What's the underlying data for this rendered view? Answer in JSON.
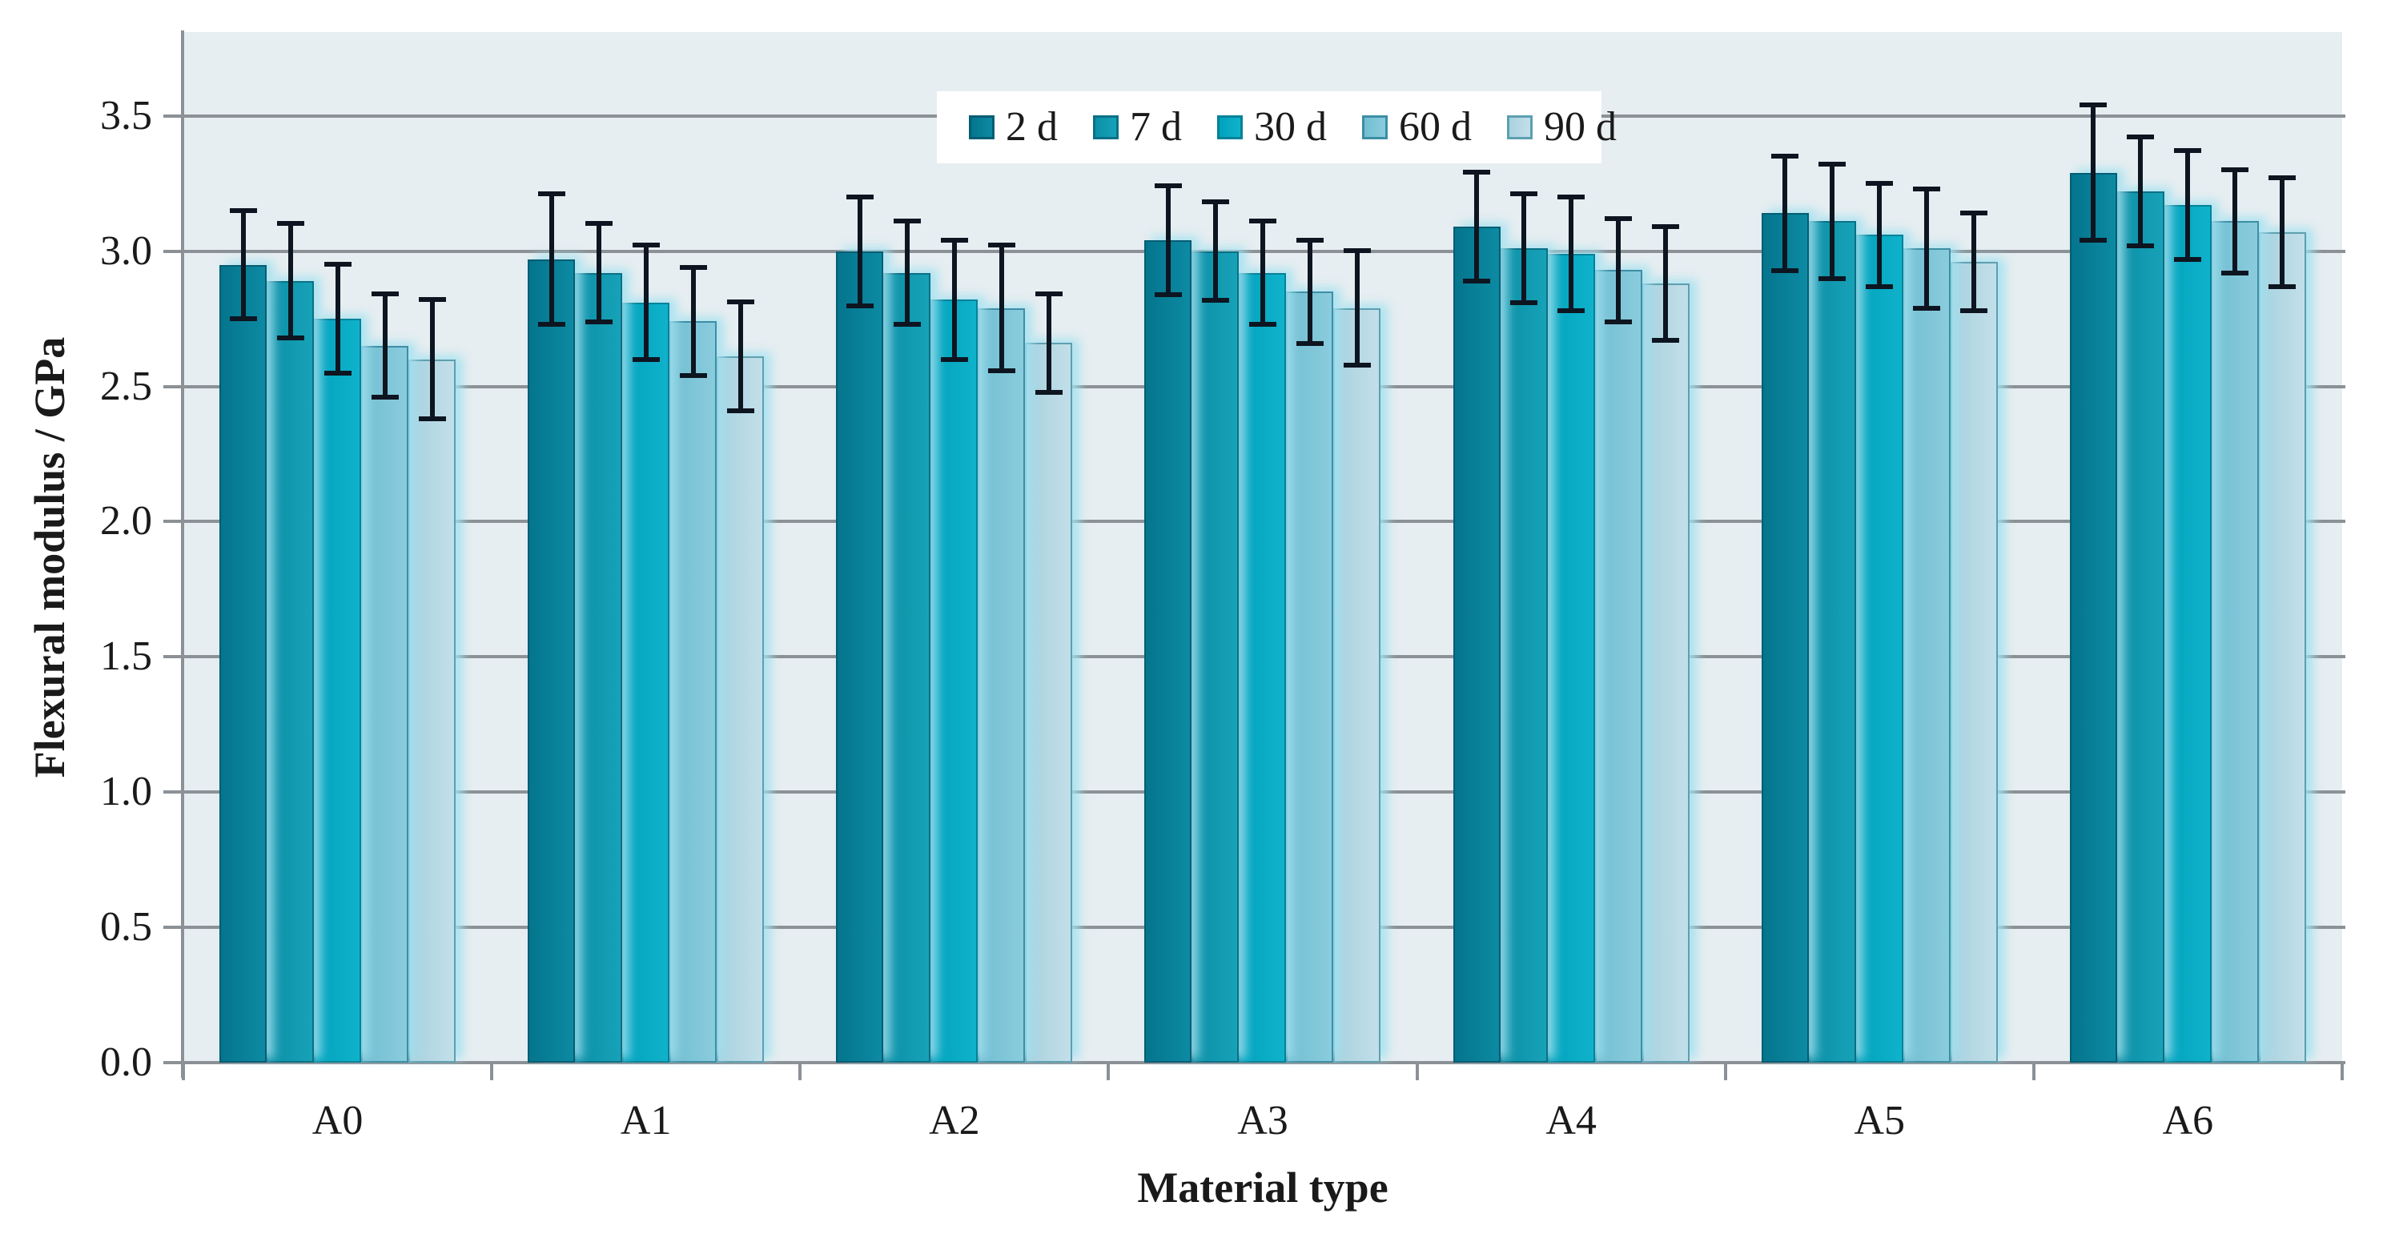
{
  "chart_data": {
    "type": "bar",
    "title": "",
    "xlabel": "Material type",
    "ylabel": "Flexural modulus / GPa",
    "categories": [
      "A0",
      "A1",
      "A2",
      "A3",
      "A4",
      "A5",
      "A6"
    ],
    "series": [
      {
        "name": "2 d",
        "fill": "#04758d",
        "fill2": "#0d8aa3",
        "border": "#045d73",
        "values": [
          2.95,
          2.97,
          3.0,
          3.04,
          3.09,
          3.14,
          3.29
        ],
        "errors": [
          0.21,
          0.25,
          0.21,
          0.21,
          0.21,
          0.22,
          0.26
        ]
      },
      {
        "name": "7 d",
        "fill": "#0b8fa6",
        "fill2": "#17a2b8",
        "border": "#0a7085",
        "values": [
          2.89,
          2.92,
          2.92,
          3.0,
          3.01,
          3.11,
          3.22
        ],
        "errors": [
          0.22,
          0.19,
          0.2,
          0.19,
          0.21,
          0.22,
          0.21
        ]
      },
      {
        "name": "30 d",
        "fill": "#00a2bd",
        "fill2": "#10b2cb",
        "border": "#028299",
        "values": [
          2.75,
          2.81,
          2.82,
          2.92,
          2.99,
          3.06,
          3.17
        ],
        "errors": [
          0.21,
          0.22,
          0.23,
          0.2,
          0.22,
          0.2,
          0.21
        ]
      },
      {
        "name": "60 d",
        "fill": "#72bed2",
        "fill2": "#8accdd",
        "border": "#3d8ea4",
        "values": [
          2.65,
          2.74,
          2.79,
          2.85,
          2.93,
          3.01,
          3.11
        ],
        "errors": [
          0.2,
          0.21,
          0.24,
          0.2,
          0.2,
          0.23,
          0.2
        ]
      },
      {
        "name": "90 d",
        "fill": "#a9d2df",
        "fill2": "#c2dfe9",
        "border": "#5d9fb0",
        "values": [
          2.6,
          2.61,
          2.66,
          2.79,
          2.88,
          2.96,
          3.07
        ],
        "errors": [
          0.23,
          0.21,
          0.19,
          0.22,
          0.22,
          0.19,
          0.21
        ]
      }
    ],
    "yticks": [
      0.0,
      0.5,
      1.0,
      1.5,
      2.0,
      2.5,
      3.0,
      3.5
    ],
    "ytick_decimals": 1,
    "ylim": [
      0,
      3.81
    ],
    "grid": true,
    "error_bars": true,
    "legend_position": "top-center"
  },
  "style": {
    "plot_bg": "#e7eef1",
    "grid_color": "#8b9196",
    "axis_color": "#8b9196",
    "error_color": "#0d1520",
    "text_color": "#1a1a1a",
    "legend_bg": "#ffffff"
  }
}
